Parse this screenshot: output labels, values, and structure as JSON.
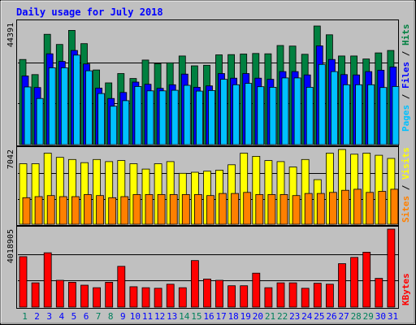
{
  "chart_data": [
    {
      "type": "bar",
      "title": "Daily usage for July 2018",
      "panel": "hits-files-pages",
      "categories": [
        "1",
        "2",
        "3",
        "4",
        "5",
        "6",
        "7",
        "8",
        "9",
        "10",
        "11",
        "12",
        "13",
        "14",
        "15",
        "16",
        "17",
        "18",
        "19",
        "20",
        "21",
        "22",
        "23",
        "24",
        "25",
        "26",
        "27",
        "28",
        "29",
        "30",
        "31"
      ],
      "weekend_days": [
        "1",
        "7",
        "8",
        "14",
        "15",
        "21",
        "22",
        "28",
        "29"
      ],
      "ymax": 44391,
      "ymax_label": "44391",
      "series": [
        {
          "name": "Hits",
          "color": "#008040",
          "values": [
            31000,
            25500,
            40200,
            36500,
            41600,
            36800,
            27200,
            22500,
            25900,
            24100,
            30800,
            29500,
            29800,
            32300,
            28700,
            28900,
            32700,
            32800,
            33000,
            33200,
            33100,
            36100,
            35900,
            32900,
            43200,
            40000,
            32300,
            32300,
            31200,
            33400,
            34300
          ]
        },
        {
          "name": "Files",
          "color": "#0000ff",
          "values": [
            25000,
            20800,
            33100,
            30300,
            34300,
            29400,
            20600,
            16800,
            19000,
            22800,
            22000,
            20500,
            21800,
            25700,
            20900,
            21400,
            25900,
            24200,
            25900,
            24200,
            23800,
            26600,
            26600,
            25400,
            36000,
            31000,
            25500,
            25400,
            26600,
            27100,
            28300
          ]
        },
        {
          "name": "Pages",
          "color": "#00c0ff",
          "values": [
            21000,
            16800,
            28000,
            28000,
            32600,
            26900,
            18600,
            14000,
            16000,
            21200,
            19600,
            19600,
            19800,
            21600,
            19500,
            19700,
            23800,
            21800,
            22300,
            21100,
            20900,
            24300,
            24300,
            20900,
            29200,
            26600,
            21800,
            21800,
            21800,
            20800,
            21200
          ]
        }
      ]
    },
    {
      "type": "bar",
      "panel": "visits-sites",
      "ymax": 7042,
      "ymax_label": "7042",
      "series": [
        {
          "name": "Visits",
          "color": "#ffff00",
          "values": [
            5700,
            5700,
            6700,
            6300,
            6100,
            5800,
            6100,
            5900,
            6000,
            5700,
            5200,
            5700,
            5900,
            4800,
            4900,
            5000,
            5100,
            5600,
            6700,
            6400,
            6000,
            5900,
            5400,
            6100,
            4200,
            6700,
            7040,
            6600,
            6700,
            6500,
            6200
          ]
        },
        {
          "name": "Sites",
          "color": "#ff8000",
          "values": [
            2500,
            2600,
            2700,
            2600,
            2600,
            2800,
            2700,
            2500,
            2600,
            2800,
            2800,
            2800,
            2800,
            2800,
            2800,
            2700,
            2900,
            2900,
            3000,
            2800,
            2800,
            2800,
            2700,
            2900,
            2900,
            3000,
            3200,
            3300,
            3000,
            3100,
            3300
          ]
        }
      ]
    },
    {
      "type": "bar",
      "panel": "kbytes",
      "ymax": 4018905,
      "ymax_label": "4018905",
      "series": [
        {
          "name": "KBytes",
          "color": "#ff0000",
          "values": [
            2600000,
            1250000,
            2800000,
            1380000,
            1280000,
            1130000,
            1000000,
            1280000,
            2100000,
            1050000,
            1000000,
            970000,
            1180000,
            1000000,
            2400000,
            1450000,
            1380000,
            1100000,
            1100000,
            1750000,
            1000000,
            1250000,
            1250000,
            970000,
            1230000,
            1180000,
            2240000,
            2560000,
            2830000,
            1480000,
            4018905
          ]
        }
      ]
    }
  ],
  "colors": {
    "background": "#c0c0c0",
    "plot": "#c0c0c0",
    "title": "#0000ff",
    "weekday": "#0000ff",
    "weekend": "#00805c",
    "separator": "#000000"
  },
  "title": "Daily usage for July 2018",
  "legend": {
    "panel1": [
      {
        "label": "Pages",
        "color": "#00c0ff"
      },
      {
        "label": " / ",
        "color": "#000000"
      },
      {
        "label": "Files",
        "color": "#0000ff"
      },
      {
        "label": " / ",
        "color": "#000000"
      },
      {
        "label": "Hits",
        "color": "#008040"
      }
    ],
    "panel2": [
      {
        "label": "Sites",
        "color": "#ff8000"
      },
      {
        "label": " / ",
        "color": "#000000"
      },
      {
        "label": "Visits",
        "color": "#ffff00"
      }
    ],
    "panel3": [
      {
        "label": "KBytes",
        "color": "#ff0000"
      }
    ]
  }
}
